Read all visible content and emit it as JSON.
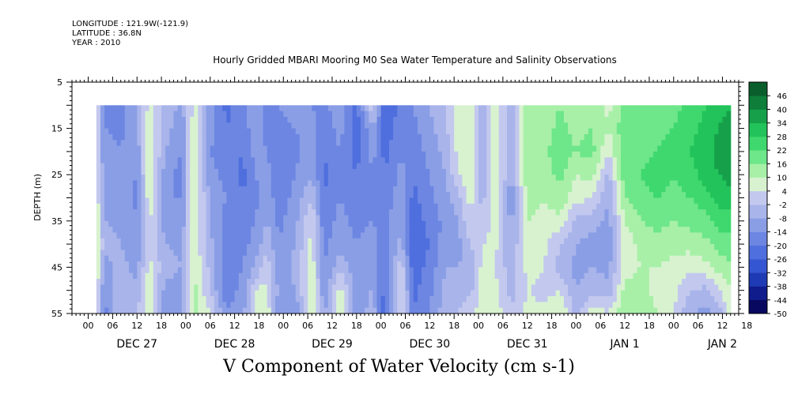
{
  "header": {
    "longitude": "LONGITUDE : 121.9W(-121.9)",
    "latitude": "LATITUDE : 36.8N",
    "year": "YEAR : 2010"
  },
  "title": "Hourly Gridded MBARI Mooring M0 Sea Water Temperature and Salinity Observations",
  "subtitle": "V Component of Water Velocity (cm s-1)",
  "chart_data": {
    "type": "heatmap",
    "title": "Hourly Gridded MBARI Mooring M0 Sea Water Temperature and Salinity Observations",
    "xlabel": "V Component of Water Velocity (cm s-1)",
    "ylabel": "DEPTH (m)",
    "ylim": [
      55,
      5
    ],
    "y_ticks": [
      5,
      15,
      25,
      35,
      45,
      55
    ],
    "x_hour_ticks": [
      "00",
      "06",
      "12",
      "18",
      "00",
      "06",
      "12",
      "18",
      "00",
      "06",
      "12",
      "18",
      "00",
      "06",
      "12",
      "18",
      "00",
      "06",
      "12",
      "18",
      "00",
      "06",
      "12",
      "18",
      "00",
      "06",
      "12",
      "18"
    ],
    "x_day_labels": [
      "DEC 27",
      "DEC 28",
      "DEC 29",
      "DEC 30",
      "DEC 31",
      "JAN  1",
      "JAN  2"
    ],
    "xlim_hours": [
      -4,
      160
    ],
    "data_start_hour": 2,
    "data_end_hour": 158,
    "data_depth_range": [
      10,
      55
    ],
    "colorbar": {
      "levels": [
        -50,
        -44,
        -38,
        -32,
        -26,
        -20,
        -14,
        -8,
        -2,
        4,
        10,
        16,
        22,
        28,
        34,
        40,
        46
      ],
      "colors": [
        "#08085f",
        "#101b8c",
        "#1e3ab4",
        "#3556d2",
        "#4f6fde",
        "#6c86e2",
        "#8a9ee6",
        "#a8b4ea",
        "#c3c8ee",
        "#d8f2d0",
        "#a8f0a8",
        "#6ee68a",
        "#3ed86e",
        "#22c35a",
        "#16a04a",
        "#0e7e3a",
        "#0a5e2c"
      ]
    },
    "profiles": [
      {
        "hour": 2,
        "v": [
          4,
          4,
          5,
          6,
          8,
          10,
          12,
          10,
          8,
          6
        ]
      },
      {
        "hour": 4,
        "v": [
          -14,
          -14,
          -13,
          -12,
          -10,
          -8,
          -6,
          -10,
          -14,
          -16
        ]
      },
      {
        "hour": 8,
        "v": [
          -16,
          -15,
          -14,
          -13,
          -12,
          -10,
          -8,
          -6,
          -4,
          -2
        ]
      },
      {
        "hour": 12,
        "v": [
          -8,
          -10,
          -12,
          -14,
          -15,
          -14,
          -12,
          -10,
          -6,
          -2
        ]
      },
      {
        "hour": 15,
        "v": [
          6,
          8,
          10,
          10,
          8,
          6,
          4,
          6,
          8,
          10
        ]
      },
      {
        "hour": 19,
        "v": [
          -4,
          -6,
          -8,
          -12,
          -14,
          -12,
          -8,
          -6,
          -10,
          -14
        ]
      },
      {
        "hour": 23,
        "v": [
          -10,
          -12,
          -14,
          -16,
          -14,
          -12,
          -10,
          -8,
          -10,
          -12
        ]
      },
      {
        "hour": 26,
        "v": [
          6,
          8,
          10,
          12,
          12,
          10,
          8,
          10,
          12,
          12
        ]
      },
      {
        "hour": 30,
        "v": [
          -10,
          -12,
          -14,
          -12,
          -10,
          -8,
          -6,
          -4,
          -2,
          4
        ]
      },
      {
        "hour": 34,
        "v": [
          -22,
          -20,
          -18,
          -16,
          -14,
          -16,
          -18,
          -20,
          -18,
          -14
        ]
      },
      {
        "hour": 38,
        "v": [
          -16,
          -18,
          -20,
          -22,
          -20,
          -18,
          -16,
          -14,
          -12,
          -10
        ]
      },
      {
        "hour": 41,
        "v": [
          -8,
          -10,
          -12,
          -14,
          -16,
          -14,
          -12,
          -8,
          4,
          6
        ]
      },
      {
        "hour": 44,
        "v": [
          -18,
          -16,
          -14,
          -12,
          -10,
          -8,
          -4,
          2,
          6,
          8
        ]
      },
      {
        "hour": 47,
        "v": [
          -14,
          -16,
          -18,
          -20,
          -18,
          -16,
          -14,
          -12,
          -10,
          -14
        ]
      },
      {
        "hour": 51,
        "v": [
          -12,
          -14,
          -16,
          -14,
          -12,
          -10,
          -8,
          -6,
          -8,
          -12
        ]
      },
      {
        "hour": 55,
        "v": [
          -14,
          -12,
          -10,
          -8,
          -2,
          4,
          6,
          8,
          10,
          8
        ]
      },
      {
        "hour": 58,
        "v": [
          -16,
          -18,
          -20,
          -22,
          -20,
          -18,
          -16,
          -14,
          -12,
          -10
        ]
      },
      {
        "hour": 62,
        "v": [
          -10,
          -12,
          -14,
          -16,
          -14,
          -12,
          -10,
          -4,
          6,
          8
        ]
      },
      {
        "hour": 66,
        "v": [
          -22,
          -24,
          -22,
          -20,
          -18,
          -16,
          -14,
          -12,
          -10,
          -14
        ]
      },
      {
        "hour": 70,
        "v": [
          4,
          -8,
          -12,
          -14,
          -16,
          -14,
          -12,
          -10,
          -8,
          -4
        ]
      },
      {
        "hour": 73,
        "v": [
          -26,
          -24,
          -22,
          -20,
          -18,
          -16,
          -18,
          -20,
          -22,
          -24
        ]
      },
      {
        "hour": 77,
        "v": [
          -18,
          -16,
          -14,
          -12,
          -10,
          -8,
          -6,
          2,
          6,
          8
        ]
      },
      {
        "hour": 80,
        "v": [
          -14,
          -16,
          -18,
          -20,
          -22,
          -24,
          -26,
          -24,
          -22,
          -20
        ]
      },
      {
        "hour": 84,
        "v": [
          -8,
          -10,
          -12,
          -14,
          -16,
          -18,
          -20,
          -18,
          -16,
          -14
        ]
      },
      {
        "hour": 88,
        "v": [
          -2,
          -4,
          -6,
          -8,
          -10,
          -12,
          -10,
          -8,
          -6,
          -4
        ]
      },
      {
        "hour": 91,
        "v": [
          8,
          10,
          6,
          4,
          -4,
          -8,
          -10,
          -8,
          -6,
          -2
        ]
      },
      {
        "hour": 94,
        "v": [
          6,
          8,
          10,
          8,
          6,
          4,
          -2,
          -6,
          -4,
          4
        ]
      },
      {
        "hour": 97,
        "v": [
          -6,
          -8,
          -10,
          -8,
          -4,
          -2,
          4,
          6,
          8,
          6
        ]
      },
      {
        "hour": 100,
        "v": [
          6,
          8,
          10,
          12,
          10,
          8,
          6,
          4,
          6,
          8
        ]
      },
      {
        "hour": 104,
        "v": [
          -4,
          -6,
          -8,
          -10,
          -12,
          -10,
          -8,
          -6,
          -4,
          -2
        ]
      },
      {
        "hour": 108,
        "v": [
          12,
          14,
          16,
          14,
          12,
          10,
          8,
          6,
          4,
          6
        ]
      },
      {
        "hour": 112,
        "v": [
          10,
          12,
          14,
          12,
          10,
          8,
          6,
          4,
          2,
          6
        ]
      },
      {
        "hour": 116,
        "v": [
          16,
          18,
          20,
          18,
          14,
          8,
          -2,
          -4,
          4,
          10
        ]
      },
      {
        "hour": 120,
        "v": [
          12,
          14,
          16,
          10,
          6,
          -4,
          -8,
          -10,
          -8,
          -4
        ]
      },
      {
        "hour": 124,
        "v": [
          14,
          16,
          18,
          12,
          4,
          -6,
          -10,
          -8,
          -4,
          8
        ]
      },
      {
        "hour": 128,
        "v": [
          8,
          10,
          4,
          -4,
          -8,
          -10,
          -12,
          -10,
          -6,
          4
        ]
      },
      {
        "hour": 132,
        "v": [
          18,
          20,
          22,
          20,
          16,
          10,
          6,
          8,
          12,
          16
        ]
      },
      {
        "hour": 136,
        "v": [
          16,
          18,
          20,
          22,
          20,
          16,
          12,
          10,
          12,
          14
        ]
      },
      {
        "hour": 140,
        "v": [
          18,
          20,
          22,
          24,
          22,
          18,
          14,
          10,
          8,
          10
        ]
      },
      {
        "hour": 144,
        "v": [
          20,
          22,
          24,
          22,
          20,
          16,
          12,
          8,
          6,
          4
        ]
      },
      {
        "hour": 148,
        "v": [
          24,
          26,
          28,
          26,
          22,
          18,
          12,
          6,
          -2,
          -8
        ]
      },
      {
        "hour": 152,
        "v": [
          28,
          30,
          32,
          30,
          26,
          20,
          14,
          8,
          -4,
          -10
        ]
      },
      {
        "hour": 155,
        "v": [
          32,
          34,
          36,
          34,
          30,
          24,
          18,
          12,
          4,
          -6
        ]
      },
      {
        "hour": 158,
        "v": [
          34,
          36,
          38,
          36,
          32,
          26,
          20,
          16,
          10,
          6
        ]
      }
    ]
  }
}
